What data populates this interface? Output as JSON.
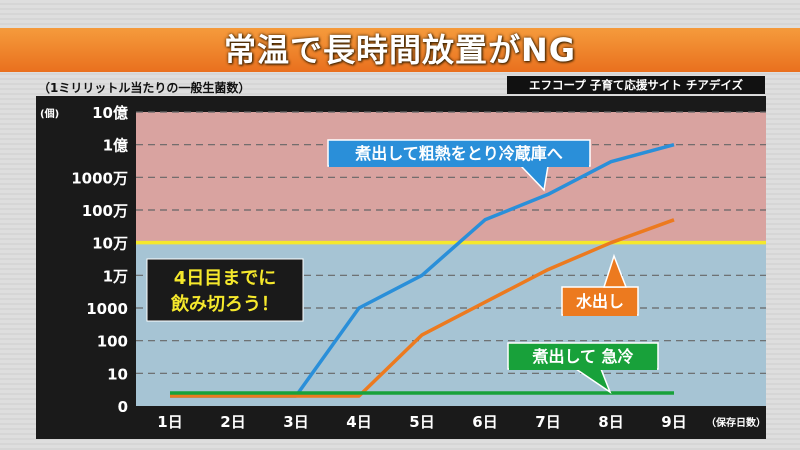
{
  "header": {
    "title": "常温で長時間放置がNG",
    "subtitle": "（1ミリリットル当たりの一般生菌数）",
    "source": "エフコープ 子育て応援サイト チアデイズ"
  },
  "chart_data": {
    "type": "line",
    "ylabel": "(個)",
    "xlabel": "（保存日数）",
    "y_scale": "log",
    "y_ticks": [
      "0",
      "10",
      "100",
      "1000",
      "1万",
      "10万",
      "100万",
      "1000万",
      "1億",
      "10億"
    ],
    "x": [
      "1日",
      "2日",
      "3日",
      "4日",
      "5日",
      "6日",
      "7日",
      "8日",
      "9日"
    ],
    "threshold": {
      "value": 100000,
      "label": "10万"
    },
    "zones": {
      "above_threshold": "#d9a3a0",
      "below_threshold": "#a6c4d4"
    },
    "series": [
      {
        "name": "煮出して粗熱をとり冷蔵庫へ",
        "color": "#2a8fd9",
        "values": [
          0,
          0,
          0,
          1000,
          10000,
          500000,
          3000000,
          30000000,
          100000000
        ]
      },
      {
        "name": "水出し",
        "color": "#ec7a1f",
        "values": [
          0,
          0,
          0,
          0,
          150,
          1500,
          15000,
          100000,
          500000
        ]
      },
      {
        "name": "煮出して 急冷",
        "color": "#18a13a",
        "values": [
          0,
          0,
          0,
          0,
          0,
          0,
          0,
          0,
          0
        ]
      }
    ],
    "annotation": {
      "text_line1": "4日目までに",
      "text_line2": "飲み切ろう！"
    }
  }
}
